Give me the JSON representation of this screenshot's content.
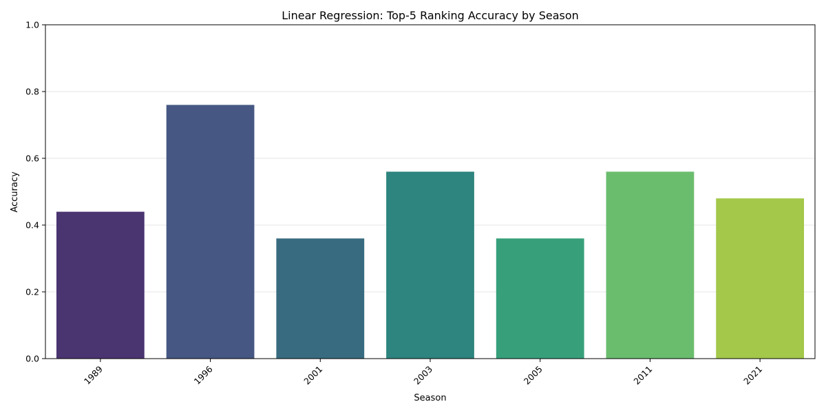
{
  "chart_data": {
    "type": "bar",
    "title": "Linear Regression: Top-5 Ranking Accuracy by Season",
    "xlabel": "Season",
    "ylabel": "Accuracy",
    "categories": [
      "1989",
      "1996",
      "2001",
      "2003",
      "2005",
      "2011",
      "2021"
    ],
    "values": [
      0.44,
      0.76,
      0.36,
      0.56,
      0.36,
      0.56,
      0.48
    ],
    "ylim": [
      0,
      1.0
    ],
    "yticks": [
      "0.0",
      "0.2",
      "0.4",
      "0.6",
      "0.8",
      "1.0"
    ],
    "grid": "y",
    "colors": [
      "#4a3571",
      "#455782",
      "#386b80",
      "#2e847e",
      "#37a07b",
      "#6bbd6e",
      "#a3c84a"
    ]
  }
}
